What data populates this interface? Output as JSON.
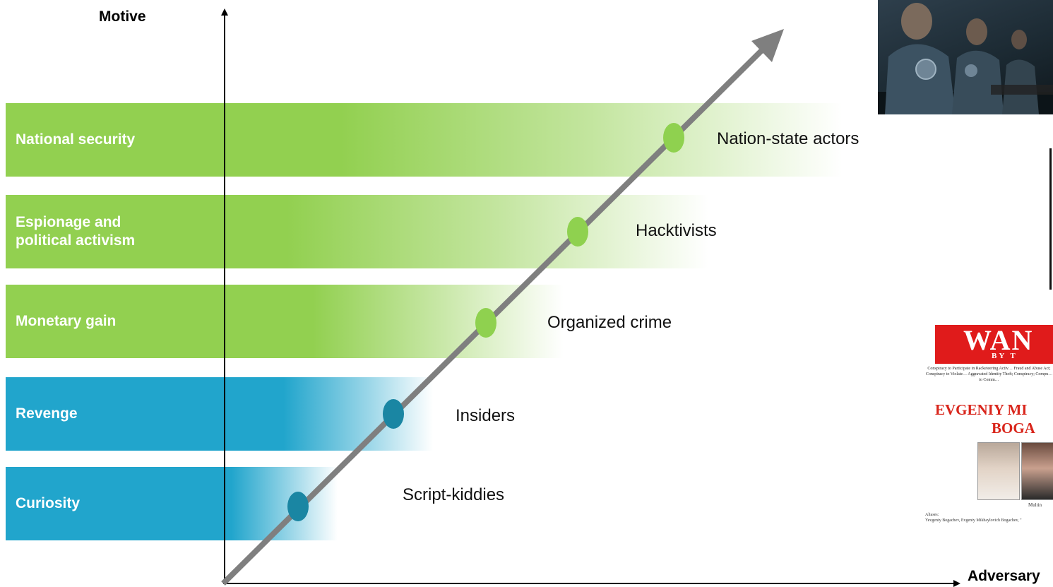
{
  "axes": {
    "y_label": "Motive",
    "x_label": "Adversary"
  },
  "motives": [
    {
      "label": "National security",
      "color": "#92d050",
      "actor": "Nation-state actors"
    },
    {
      "label": "Espionage and\npolitical activism",
      "color": "#92d050",
      "actor": "Hacktivists"
    },
    {
      "label": "Monetary gain",
      "color": "#92d050",
      "actor": "Organized crime"
    },
    {
      "label": "Revenge",
      "color": "#21a5cc",
      "actor": "Insiders"
    },
    {
      "label": "Curiosity",
      "color": "#21a5cc",
      "actor": "Script-kiddies"
    }
  ],
  "poster": {
    "heading": "WAN",
    "subheading": "BY T",
    "charges": "Conspiracy to Participate in Racketeering Activ… Fraud and Abuse Act; Conspiracy to Violate… Aggravated Identity Theft; Conspiracy; Compu… to Comm…",
    "name_line1": "EVGENIY MI",
    "name_line2": "BOGA",
    "caption": "Multin",
    "aliases_label": "Aliases:",
    "aliases": "Yevgeniy Bogachev, Evgeniy Mikhaylovich Bogachev, \""
  },
  "colors": {
    "green": "#92d050",
    "blue": "#21a5cc",
    "green_dot": "#8fd14f",
    "blue_dot": "#1a86a3",
    "trend": "#7f7f7f"
  }
}
